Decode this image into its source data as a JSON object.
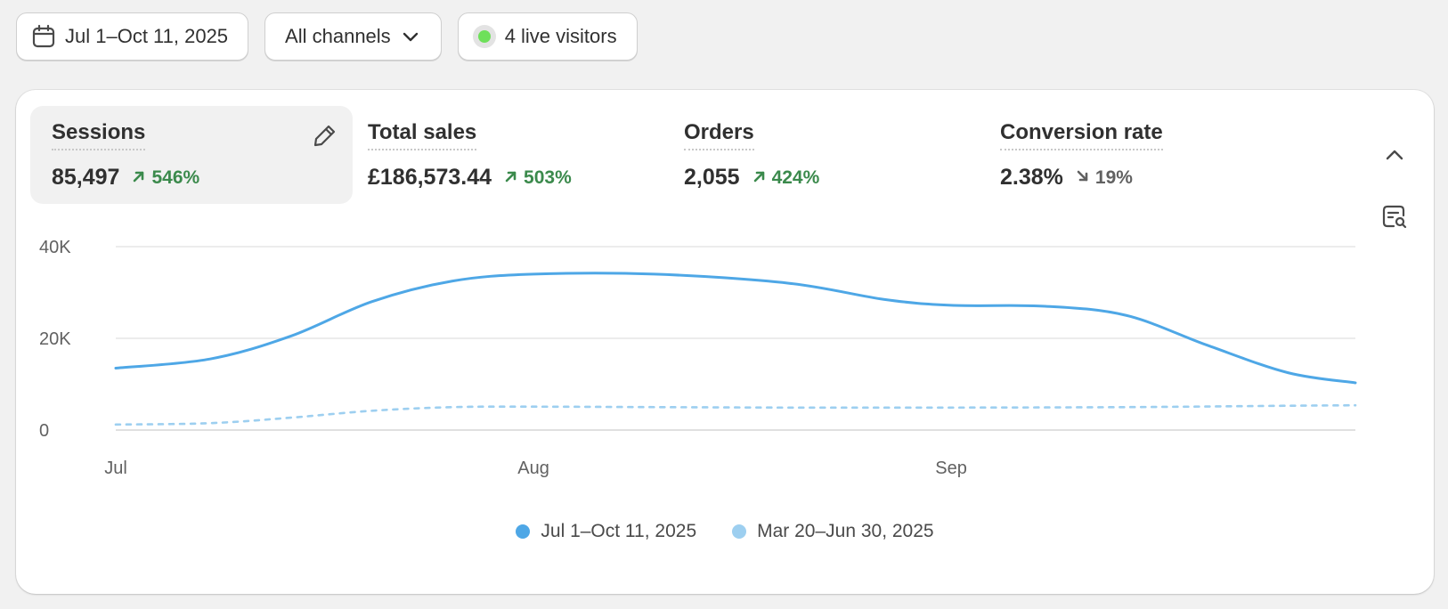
{
  "toolbar": {
    "date_range": "Jul 1–Oct 11, 2025",
    "channels": "All channels",
    "live_visitors": "4 live visitors",
    "live_color": "#6ee05a"
  },
  "metrics": [
    {
      "label": "Sessions",
      "value": "85,497",
      "change": "546%",
      "direction": "up",
      "active": true
    },
    {
      "label": "Total sales",
      "value": "£186,573.44",
      "change": "503%",
      "direction": "up",
      "active": false
    },
    {
      "label": "Orders",
      "value": "2,055",
      "change": "424%",
      "direction": "up",
      "active": false
    },
    {
      "label": "Conversion rate",
      "value": "2.38%",
      "change": "19%",
      "direction": "down",
      "active": false
    }
  ],
  "colors": {
    "positive": "#3b8a4c",
    "negative": "#616161",
    "series_current": "#4ea7e6",
    "series_previous": "#9dcff0"
  },
  "icons": [
    "calendar-icon",
    "chevron-down-icon",
    "live-dot-icon",
    "pencil-icon",
    "arrow-up-right-icon",
    "arrow-down-right-icon",
    "chevron-up-icon",
    "annotation-icon"
  ],
  "chart_data": {
    "type": "line",
    "y_ticks": [
      "40K",
      "20K",
      "0"
    ],
    "y_tick_values": [
      40000,
      20000,
      0
    ],
    "ylim": [
      0,
      40000
    ],
    "x_tick_labels": [
      "Jul",
      "Aug",
      "Sep"
    ],
    "x_tick_dates": [
      "2025-07-01",
      "2025-08-01",
      "2025-09-01"
    ],
    "x_range": [
      "2025-07-01",
      "2025-10-01"
    ],
    "grid": true,
    "legend_position": "bottom",
    "series": [
      {
        "name": "Jul 1–Oct 11, 2025",
        "style": "solid",
        "x": [
          "2025-07-01",
          "2025-07-08",
          "2025-07-14",
          "2025-07-20",
          "2025-07-26",
          "2025-08-01",
          "2025-08-10",
          "2025-08-20",
          "2025-08-27",
          "2025-09-01",
          "2025-09-08",
          "2025-09-14",
          "2025-09-20",
          "2025-09-26",
          "2025-10-01"
        ],
        "values": [
          13500,
          15500,
          20500,
          28000,
          32500,
          34000,
          34000,
          32000,
          28500,
          27200,
          27000,
          25000,
          18500,
          12500,
          10300
        ]
      },
      {
        "name": "Mar 20–Jun 30, 2025",
        "style": "dashed",
        "x": [
          "2025-07-01",
          "2025-07-08",
          "2025-07-14",
          "2025-07-20",
          "2025-07-26",
          "2025-08-01",
          "2025-08-10",
          "2025-08-20",
          "2025-09-01",
          "2025-09-14",
          "2025-09-26",
          "2025-10-01"
        ],
        "values": [
          1200,
          1500,
          2700,
          4200,
          5000,
          5100,
          5000,
          4900,
          4900,
          5000,
          5300,
          5400
        ]
      }
    ]
  }
}
